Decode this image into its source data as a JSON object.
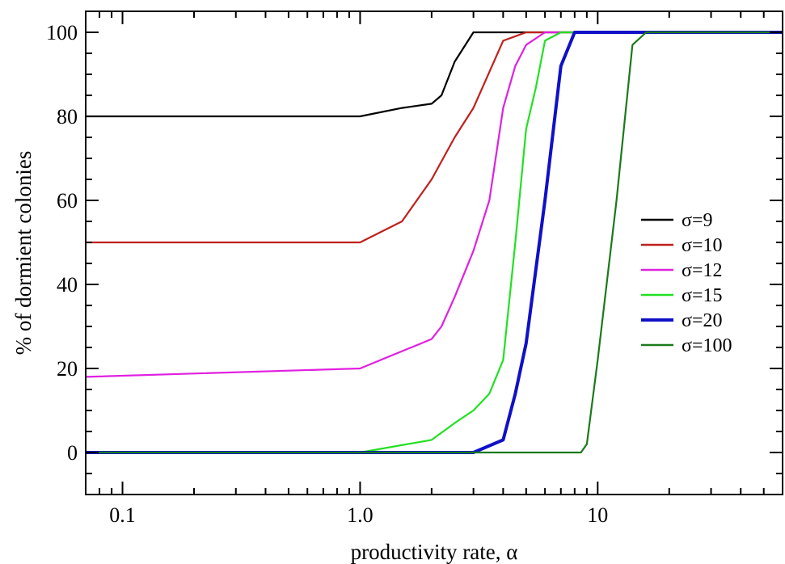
{
  "chart_data": {
    "type": "line",
    "title": "",
    "xlabel": "productivity rate, α",
    "ylabel": "% of dormient colonies",
    "xscale": "log",
    "xlim": [
      0.07,
      60
    ],
    "ylim": [
      -10,
      105
    ],
    "grid": false,
    "legend_position": "right",
    "x_ticks": [
      {
        "value": 0.1,
        "label": "0.1"
      },
      {
        "value": 1,
        "label": "1.0"
      },
      {
        "value": 10,
        "label": "10"
      }
    ],
    "y_ticks": [
      {
        "value": 0,
        "label": "0"
      },
      {
        "value": 20,
        "label": "20"
      },
      {
        "value": 40,
        "label": "40"
      },
      {
        "value": 60,
        "label": "60"
      },
      {
        "value": 80,
        "label": "80"
      },
      {
        "value": 100,
        "label": "100"
      }
    ],
    "series": [
      {
        "name": "σ=9",
        "color": "#000000",
        "points": [
          [
            0.07,
            80
          ],
          [
            1.0,
            80
          ],
          [
            1.5,
            82
          ],
          [
            2.0,
            83
          ],
          [
            2.2,
            85
          ],
          [
            2.5,
            93
          ],
          [
            3.0,
            100
          ],
          [
            60,
            100
          ]
        ]
      },
      {
        "name": "σ=10",
        "color": "#c0201c",
        "points": [
          [
            0.07,
            50
          ],
          [
            1.0,
            50
          ],
          [
            1.5,
            55
          ],
          [
            2.0,
            65
          ],
          [
            2.5,
            75
          ],
          [
            3.0,
            82
          ],
          [
            4.0,
            98
          ],
          [
            5.0,
            100
          ],
          [
            60,
            100
          ]
        ]
      },
      {
        "name": "σ=12",
        "color": "#e020e0",
        "points": [
          [
            0.07,
            18
          ],
          [
            1.0,
            20
          ],
          [
            2.0,
            27
          ],
          [
            2.2,
            30
          ],
          [
            2.5,
            37
          ],
          [
            3.0,
            48
          ],
          [
            3.5,
            60
          ],
          [
            4.0,
            82
          ],
          [
            4.5,
            92
          ],
          [
            5.0,
            97
          ],
          [
            6.0,
            100
          ],
          [
            60,
            100
          ]
        ]
      },
      {
        "name": "σ=15",
        "color": "#22e022",
        "points": [
          [
            0.07,
            0
          ],
          [
            1.0,
            0
          ],
          [
            2.0,
            3
          ],
          [
            2.5,
            7
          ],
          [
            3.0,
            10
          ],
          [
            3.5,
            14
          ],
          [
            4.0,
            22
          ],
          [
            4.5,
            50
          ],
          [
            5.0,
            77
          ],
          [
            5.5,
            87
          ],
          [
            6.0,
            98
          ],
          [
            7.0,
            100
          ],
          [
            60,
            100
          ]
        ]
      },
      {
        "name": "σ=20",
        "color": "#1010c8",
        "points": [
          [
            0.07,
            0
          ],
          [
            3.0,
            0
          ],
          [
            4.0,
            3
          ],
          [
            4.5,
            14
          ],
          [
            5.0,
            26
          ],
          [
            6.0,
            60
          ],
          [
            7.0,
            92
          ],
          [
            8.0,
            100
          ],
          [
            60,
            100
          ]
        ]
      },
      {
        "name": "σ=100",
        "color": "#1a7a1a",
        "points": [
          [
            0.07,
            0
          ],
          [
            8.5,
            0
          ],
          [
            9.0,
            2
          ],
          [
            10.0,
            22
          ],
          [
            12.0,
            60
          ],
          [
            14.0,
            97
          ],
          [
            16.0,
            100
          ],
          [
            60,
            100
          ]
        ]
      }
    ]
  }
}
